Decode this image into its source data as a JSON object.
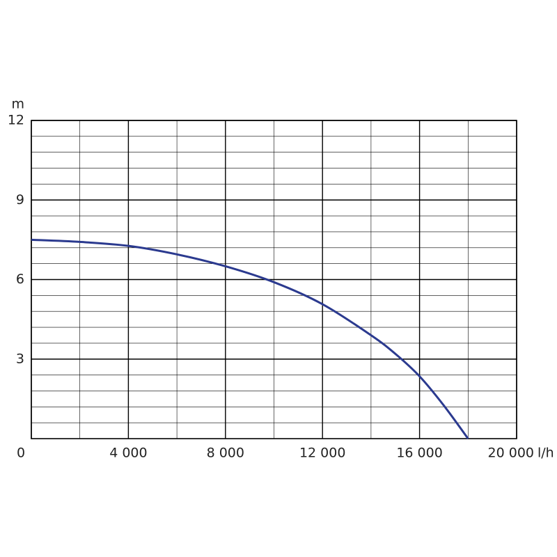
{
  "chart_data": {
    "type": "line",
    "x_unit": "l/h",
    "y_unit": "m",
    "x": [
      0,
      2000,
      4000,
      6000,
      8000,
      10000,
      12000,
      14000,
      15000,
      16000,
      17000,
      18000
    ],
    "series": [
      {
        "color": "#2b3a8f",
        "values": [
          7.5,
          7.42,
          7.27,
          6.95,
          6.5,
          5.9,
          5.07,
          3.9,
          3.2,
          2.35,
          1.25,
          0
        ]
      }
    ],
    "xlim": [
      0,
      20000
    ],
    "ylim": [
      0,
      12
    ],
    "xticks": [
      0,
      {
        "value": 4000,
        "label": "4 000"
      },
      {
        "value": 8000,
        "label": "8 000"
      },
      {
        "value": 12000,
        "label": "12 000"
      },
      {
        "value": 16000,
        "label": "16 000"
      },
      {
        "value": 20000,
        "label": "20 000"
      }
    ],
    "yticks": [
      3,
      6,
      9,
      12
    ],
    "minor_xticks": [
      2000,
      6000,
      10000,
      14000,
      18000
    ],
    "minor_yticks": [
      0.6,
      1.2,
      1.8,
      2.4,
      3.6,
      4.2,
      4.8,
      5.4,
      6.6,
      7.2,
      7.8,
      8.4,
      9.6,
      10.2,
      10.8,
      11.4
    ],
    "grid": true
  }
}
